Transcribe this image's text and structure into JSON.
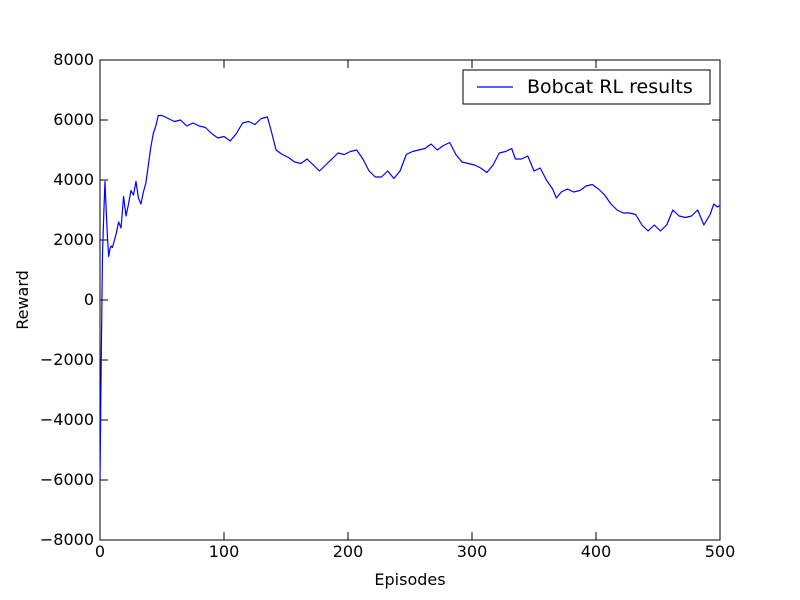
{
  "chart_data": {
    "type": "line",
    "title": "",
    "xlabel": "Episodes",
    "ylabel": "Reward",
    "xlim": [
      0,
      500
    ],
    "ylim": [
      -8000,
      8000
    ],
    "x_ticks": [
      0,
      100,
      200,
      300,
      400,
      500
    ],
    "y_ticks": [
      -8000,
      -6000,
      -4000,
      -2000,
      0,
      2000,
      4000,
      6000,
      8000
    ],
    "x_tick_labels": [
      "0",
      "100",
      "200",
      "300",
      "400",
      "500"
    ],
    "y_tick_labels": [
      "−8000",
      "−6000",
      "−4000",
      "−2000",
      "0",
      "2000",
      "4000",
      "6000",
      "8000"
    ],
    "grid": false,
    "legend_position": "top-right",
    "series": [
      {
        "name": "Bobcat RL results",
        "color": "#0000ff",
        "points": [
          [
            0,
            -6000
          ],
          [
            1,
            -2000
          ],
          [
            2,
            1500
          ],
          [
            3,
            2800
          ],
          [
            4,
            3950
          ],
          [
            5,
            3000
          ],
          [
            6,
            2100
          ],
          [
            7,
            1450
          ],
          [
            8,
            1700
          ],
          [
            9,
            1800
          ],
          [
            10,
            1750
          ],
          [
            11,
            1900
          ],
          [
            13,
            2200
          ],
          [
            15,
            2600
          ],
          [
            17,
            2400
          ],
          [
            19,
            3450
          ],
          [
            21,
            2800
          ],
          [
            23,
            3200
          ],
          [
            25,
            3650
          ],
          [
            27,
            3500
          ],
          [
            29,
            3950
          ],
          [
            31,
            3400
          ],
          [
            33,
            3200
          ],
          [
            35,
            3600
          ],
          [
            37,
            3900
          ],
          [
            39,
            4500
          ],
          [
            41,
            5100
          ],
          [
            43,
            5550
          ],
          [
            45,
            5800
          ],
          [
            47,
            6150
          ],
          [
            50,
            6150
          ],
          [
            55,
            6050
          ],
          [
            60,
            5950
          ],
          [
            65,
            6000
          ],
          [
            70,
            5800
          ],
          [
            75,
            5900
          ],
          [
            80,
            5800
          ],
          [
            85,
            5750
          ],
          [
            90,
            5550
          ],
          [
            95,
            5400
          ],
          [
            100,
            5450
          ],
          [
            105,
            5300
          ],
          [
            110,
            5550
          ],
          [
            115,
            5900
          ],
          [
            120,
            5950
          ],
          [
            125,
            5850
          ],
          [
            130,
            6050
          ],
          [
            135,
            6100
          ],
          [
            138,
            5650
          ],
          [
            142,
            5000
          ],
          [
            147,
            4850
          ],
          [
            152,
            4750
          ],
          [
            157,
            4600
          ],
          [
            162,
            4550
          ],
          [
            167,
            4700
          ],
          [
            172,
            4500
          ],
          [
            177,
            4300
          ],
          [
            182,
            4500
          ],
          [
            187,
            4700
          ],
          [
            192,
            4900
          ],
          [
            197,
            4850
          ],
          [
            202,
            4950
          ],
          [
            207,
            5000
          ],
          [
            212,
            4700
          ],
          [
            217,
            4300
          ],
          [
            222,
            4100
          ],
          [
            227,
            4100
          ],
          [
            232,
            4300
          ],
          [
            237,
            4050
          ],
          [
            242,
            4300
          ],
          [
            247,
            4850
          ],
          [
            252,
            4950
          ],
          [
            257,
            5000
          ],
          [
            262,
            5050
          ],
          [
            267,
            5200
          ],
          [
            272,
            5000
          ],
          [
            277,
            5150
          ],
          [
            282,
            5250
          ],
          [
            287,
            4850
          ],
          [
            292,
            4600
          ],
          [
            297,
            4550
          ],
          [
            302,
            4500
          ],
          [
            307,
            4400
          ],
          [
            312,
            4250
          ],
          [
            317,
            4500
          ],
          [
            322,
            4900
          ],
          [
            327,
            4950
          ],
          [
            332,
            5050
          ],
          [
            335,
            4700
          ],
          [
            340,
            4700
          ],
          [
            345,
            4800
          ],
          [
            350,
            4300
          ],
          [
            355,
            4400
          ],
          [
            360,
            4000
          ],
          [
            365,
            3700
          ],
          [
            368,
            3400
          ],
          [
            372,
            3600
          ],
          [
            377,
            3700
          ],
          [
            382,
            3600
          ],
          [
            387,
            3650
          ],
          [
            392,
            3800
          ],
          [
            397,
            3850
          ],
          [
            402,
            3700
          ],
          [
            407,
            3500
          ],
          [
            412,
            3200
          ],
          [
            417,
            3000
          ],
          [
            422,
            2900
          ],
          [
            427,
            2900
          ],
          [
            432,
            2850
          ],
          [
            437,
            2500
          ],
          [
            442,
            2300
          ],
          [
            447,
            2500
          ],
          [
            452,
            2300
          ],
          [
            457,
            2500
          ],
          [
            462,
            3000
          ],
          [
            467,
            2800
          ],
          [
            472,
            2750
          ],
          [
            477,
            2800
          ],
          [
            482,
            3000
          ],
          [
            487,
            2500
          ],
          [
            492,
            2850
          ],
          [
            495,
            3200
          ],
          [
            498,
            3100
          ],
          [
            500,
            3150
          ]
        ]
      }
    ]
  }
}
